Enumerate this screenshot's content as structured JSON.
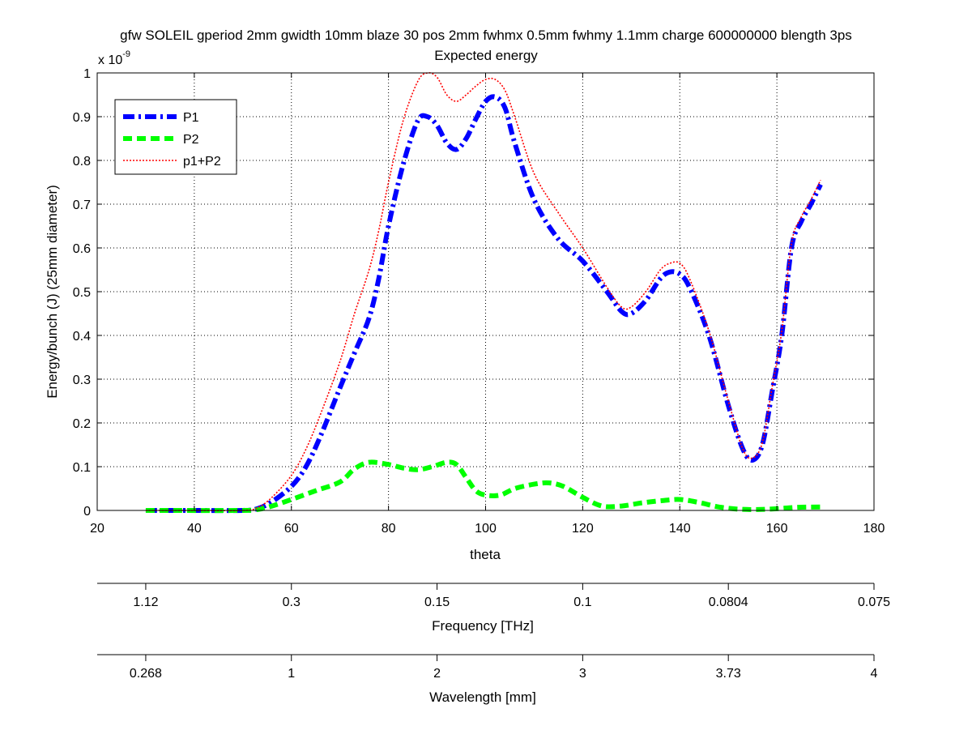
{
  "chart_data": {
    "type": "line",
    "title": "gfw SOLEIL gperiod 2mm gwidth 10mm blaze 30 pos 2mm fwhmx 0.5mm fwhmy 1.1mm charge 600000000 blength 3ps",
    "subtitle": "Expected energy",
    "xlabel": "theta",
    "ylabel": "Energy/bunch (J) (25mm diameter)",
    "y_multiplier_base": "x 10",
    "y_multiplier_exp": "-9",
    "xlim": [
      20,
      180
    ],
    "ylim": [
      0,
      1
    ],
    "x_ticks": [
      "20",
      "40",
      "60",
      "80",
      "100",
      "120",
      "140",
      "160",
      "180"
    ],
    "y_ticks": [
      "0",
      "0.1",
      "0.2",
      "0.3",
      "0.4",
      "0.5",
      "0.6",
      "0.7",
      "0.8",
      "0.9",
      "1"
    ],
    "grid": true,
    "legend_position": "top-left",
    "series": [
      {
        "name": "P1",
        "color": "#0000ff",
        "style": "dash-dot",
        "points": [
          [
            30,
            0.0
          ],
          [
            40,
            0.0
          ],
          [
            50,
            0.0
          ],
          [
            53,
            0.004
          ],
          [
            56,
            0.02
          ],
          [
            60,
            0.055
          ],
          [
            63,
            0.1
          ],
          [
            66,
            0.17
          ],
          [
            70,
            0.28
          ],
          [
            73,
            0.36
          ],
          [
            76,
            0.44
          ],
          [
            78,
            0.53
          ],
          [
            80,
            0.65
          ],
          [
            83,
            0.79
          ],
          [
            86,
            0.89
          ],
          [
            88,
            0.9
          ],
          [
            90,
            0.88
          ],
          [
            92,
            0.84
          ],
          [
            94,
            0.825
          ],
          [
            96,
            0.85
          ],
          [
            98,
            0.895
          ],
          [
            100,
            0.935
          ],
          [
            102,
            0.945
          ],
          [
            104,
            0.92
          ],
          [
            106,
            0.84
          ],
          [
            110,
            0.71
          ],
          [
            115,
            0.62
          ],
          [
            120,
            0.57
          ],
          [
            125,
            0.5
          ],
          [
            128,
            0.455
          ],
          [
            130,
            0.45
          ],
          [
            133,
            0.48
          ],
          [
            136,
            0.53
          ],
          [
            138,
            0.545
          ],
          [
            140,
            0.54
          ],
          [
            142,
            0.51
          ],
          [
            146,
            0.4
          ],
          [
            150,
            0.24
          ],
          [
            153,
            0.14
          ],
          [
            155,
            0.115
          ],
          [
            157,
            0.15
          ],
          [
            159,
            0.27
          ],
          [
            161,
            0.4
          ],
          [
            163,
            0.6
          ],
          [
            165,
            0.66
          ],
          [
            167,
            0.7
          ],
          [
            169,
            0.745
          ]
        ]
      },
      {
        "name": "P2",
        "color": "#00ff00",
        "style": "dashed",
        "points": [
          [
            30,
            0.0
          ],
          [
            50,
            0.0
          ],
          [
            53,
            0.002
          ],
          [
            56,
            0.01
          ],
          [
            60,
            0.025
          ],
          [
            65,
            0.045
          ],
          [
            70,
            0.065
          ],
          [
            73,
            0.095
          ],
          [
            76,
            0.11
          ],
          [
            80,
            0.105
          ],
          [
            83,
            0.097
          ],
          [
            86,
            0.093
          ],
          [
            89,
            0.1
          ],
          [
            92,
            0.11
          ],
          [
            94,
            0.105
          ],
          [
            96,
            0.075
          ],
          [
            98,
            0.045
          ],
          [
            100,
            0.035
          ],
          [
            103,
            0.035
          ],
          [
            106,
            0.05
          ],
          [
            110,
            0.06
          ],
          [
            113,
            0.063
          ],
          [
            116,
            0.055
          ],
          [
            120,
            0.03
          ],
          [
            124,
            0.01
          ],
          [
            128,
            0.01
          ],
          [
            132,
            0.017
          ],
          [
            136,
            0.022
          ],
          [
            140,
            0.025
          ],
          [
            144,
            0.018
          ],
          [
            148,
            0.008
          ],
          [
            152,
            0.003
          ],
          [
            156,
            0.002
          ],
          [
            160,
            0.004
          ],
          [
            164,
            0.007
          ],
          [
            169,
            0.008
          ]
        ]
      },
      {
        "name": "p1+P2",
        "color": "#ff0000",
        "style": "dotted",
        "points": [
          [
            30,
            0.0
          ],
          [
            40,
            0.0
          ],
          [
            50,
            0.0
          ],
          [
            53,
            0.006
          ],
          [
            56,
            0.03
          ],
          [
            60,
            0.08
          ],
          [
            63,
            0.14
          ],
          [
            66,
            0.22
          ],
          [
            70,
            0.34
          ],
          [
            73,
            0.45
          ],
          [
            76,
            0.55
          ],
          [
            78,
            0.64
          ],
          [
            80,
            0.75
          ],
          [
            83,
            0.89
          ],
          [
            86,
            0.98
          ],
          [
            88,
            1.0
          ],
          [
            90,
            0.99
          ],
          [
            92,
            0.95
          ],
          [
            94,
            0.935
          ],
          [
            96,
            0.95
          ],
          [
            98,
            0.97
          ],
          [
            100,
            0.985
          ],
          [
            102,
            0.985
          ],
          [
            104,
            0.96
          ],
          [
            106,
            0.9
          ],
          [
            110,
            0.77
          ],
          [
            115,
            0.68
          ],
          [
            120,
            0.6
          ],
          [
            125,
            0.51
          ],
          [
            128,
            0.465
          ],
          [
            130,
            0.465
          ],
          [
            133,
            0.5
          ],
          [
            136,
            0.55
          ],
          [
            138,
            0.565
          ],
          [
            140,
            0.565
          ],
          [
            142,
            0.53
          ],
          [
            146,
            0.41
          ],
          [
            150,
            0.25
          ],
          [
            153,
            0.14
          ],
          [
            155,
            0.12
          ],
          [
            157,
            0.155
          ],
          [
            159,
            0.28
          ],
          [
            161,
            0.41
          ],
          [
            163,
            0.61
          ],
          [
            165,
            0.67
          ],
          [
            167,
            0.71
          ],
          [
            169,
            0.755
          ]
        ]
      }
    ],
    "secondary_axes": [
      {
        "label": "Frequency [THz]",
        "ticks": [
          {
            "at_theta": 30,
            "label": "1.12"
          },
          {
            "at_theta": 60,
            "label": "0.3"
          },
          {
            "at_theta": 90,
            "label": "0.15"
          },
          {
            "at_theta": 120,
            "label": "0.1"
          },
          {
            "at_theta": 150,
            "label": "0.0804"
          },
          {
            "at_theta": 180,
            "label": "0.075"
          }
        ]
      },
      {
        "label": "Wavelength [mm]",
        "ticks": [
          {
            "at_theta": 30,
            "label": "0.268"
          },
          {
            "at_theta": 60,
            "label": "1"
          },
          {
            "at_theta": 90,
            "label": "2"
          },
          {
            "at_theta": 120,
            "label": "3"
          },
          {
            "at_theta": 150,
            "label": "3.73"
          },
          {
            "at_theta": 180,
            "label": "4"
          }
        ]
      }
    ]
  }
}
